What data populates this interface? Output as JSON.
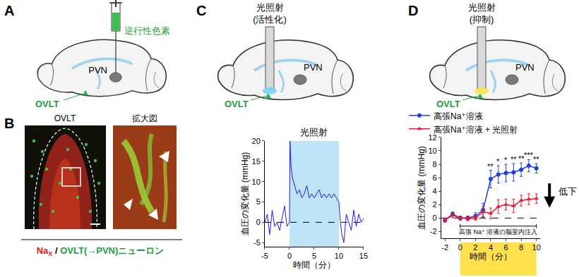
{
  "panels": {
    "A": {
      "label": "A",
      "diagram": {
        "tracer": "逆行性色素",
        "pvn": "PVN",
        "ovlt": "OVLT"
      }
    },
    "B": {
      "label": "B",
      "images": [
        "OVLT",
        "拡大図"
      ],
      "caption": {
        "red_main": "Na",
        "red_sub": "X",
        "separator": "/",
        "green": "OVLT(→PVN)ニューロン"
      }
    },
    "C": {
      "label": "C",
      "diagram": {
        "light": [
          "光照射",
          "(活性化)"
        ],
        "pvn": "PVN",
        "ovlt": "OVLT"
      }
    },
    "D": {
      "label": "D",
      "diagram": {
        "light": [
          "光照射",
          "(抑制)"
        ],
        "pvn": "PVN",
        "ovlt": "OVLT"
      }
    }
  },
  "chart_data": [
    {
      "type": "line",
      "y_label": "血圧の変化量 (mmHg)",
      "x_label": "時間（分）",
      "x": [
        -5,
        -4.5,
        -4,
        -3.5,
        -3,
        -2.5,
        -2,
        -1.5,
        -1,
        -0.5,
        0,
        0.1,
        0.3,
        0.6,
        1,
        1.5,
        2,
        2.5,
        3,
        3.5,
        4,
        4.5,
        5,
        5.5,
        6,
        6.5,
        7,
        7.5,
        8,
        8.5,
        9,
        9.5,
        10,
        10.3,
        10.6,
        11,
        11.5,
        12,
        12.5,
        13,
        13.5,
        14,
        14.5,
        15
      ],
      "values": [
        0,
        2,
        -3,
        3,
        -1,
        0,
        -2,
        1,
        4,
        -1,
        0,
        20,
        14,
        11,
        9,
        7,
        8,
        6,
        7,
        9,
        6,
        7,
        6,
        7,
        8,
        6,
        7,
        6,
        7,
        6,
        7,
        6,
        5,
        0,
        -3,
        -5,
        2,
        0,
        -2,
        3,
        -1,
        2,
        0,
        1
      ],
      "color": "#1a1aff",
      "xlim": [
        -5,
        15
      ],
      "xticks": [
        -5,
        0,
        5,
        10,
        15
      ],
      "ylim": [
        -6,
        20
      ],
      "yticks": [
        -5,
        0,
        5,
        10,
        15,
        20
      ],
      "grid": false,
      "baseline": 0,
      "shaded": {
        "range": [
          0,
          10
        ],
        "label": "光照射",
        "color": "#bfe3f7"
      }
    },
    {
      "type": "line",
      "y_label": "血圧の変化量 (mmHg)",
      "x_label": "時間（分）",
      "x": [
        -2,
        -1,
        0,
        1,
        2,
        3,
        4,
        5,
        6,
        7,
        8,
        9,
        10
      ],
      "series": [
        {
          "name": "高張Na⁺溶液",
          "color": "#1f3fe0",
          "marker": "circle",
          "values": [
            -0.3,
            0.6,
            0,
            0,
            0.3,
            1.2,
            5.8,
            6.5,
            6.7,
            6.8,
            7.2,
            7.8,
            7.4
          ],
          "error": [
            0.3,
            0.3,
            0.3,
            0.3,
            0.5,
            1,
            1.3,
            1.3,
            1.3,
            1.3,
            1,
            0.9,
            0.7
          ]
        },
        {
          "name": "高張Na⁺溶液 + 光照射",
          "color": "#e8192c",
          "marker": "triangle",
          "values": [
            -0.3,
            0.4,
            0,
            -0.1,
            0,
            0.9,
            0.7,
            1.7,
            2,
            1.8,
            2.6,
            2.8,
            2.9
          ],
          "error": [
            0.3,
            0.3,
            0.3,
            0.3,
            0.3,
            0.8,
            0.8,
            1,
            0.8,
            1,
            0.8,
            0.8,
            0.7
          ]
        }
      ],
      "significance": [
        null,
        null,
        null,
        null,
        null,
        null,
        "**",
        "*",
        "*",
        "**",
        "**",
        "***",
        "**"
      ],
      "xlim": [
        -2.5,
        10.5
      ],
      "xticks": [
        -2,
        0,
        2,
        4,
        6,
        8,
        10
      ],
      "ylim": [
        -3,
        12
      ],
      "yticks": [
        -2,
        0,
        2,
        4,
        6,
        8,
        10,
        12
      ],
      "grid": false,
      "legend": "top",
      "baseline": 0,
      "injection": {
        "range": [
          0,
          10
        ],
        "label": "高張 Na⁺ 溶液の脳室内注入"
      },
      "light_period": {
        "range": [
          0,
          10
        ],
        "color": "#ffe14d"
      },
      "effect_label": "低下"
    }
  ]
}
